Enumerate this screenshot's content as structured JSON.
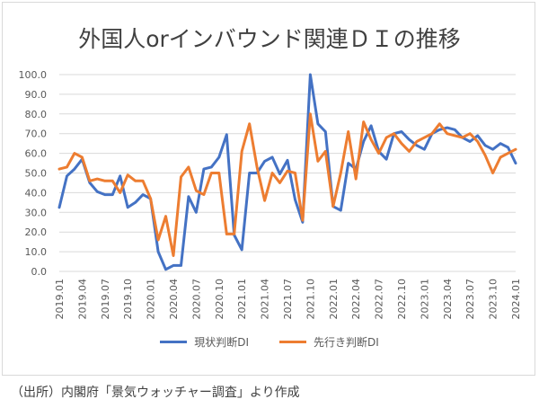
{
  "chart_data": {
    "type": "line",
    "title": "外国人orインバウンド関連ＤＩの推移",
    "ylim": [
      0,
      100
    ],
    "yticks": [
      "0.0",
      "10.0",
      "20.0",
      "30.0",
      "40.0",
      "50.0",
      "60.0",
      "70.0",
      "80.0",
      "90.0",
      "100.0"
    ],
    "x": [
      "2019.01",
      "2019.02",
      "2019.03",
      "2019.04",
      "2019.05",
      "2019.06",
      "2019.07",
      "2019.08",
      "2019.09",
      "2019.10",
      "2019.11",
      "2019.12",
      "2020.01",
      "2020.02",
      "2020.03",
      "2020.04",
      "2020.05",
      "2020.06",
      "2020.07",
      "2020.08",
      "2020.09",
      "2020.10",
      "2020.11",
      "2020.12",
      "2021.01",
      "2021.02",
      "2021.03",
      "2021.04",
      "2021.05",
      "2021.06",
      "2021.07",
      "2021.08",
      "2021.09",
      "2021.10",
      "2021.11",
      "2021.12",
      "2022.01",
      "2022.02",
      "2022.03",
      "2022.04",
      "2022.05",
      "2022.06",
      "2022.07",
      "2022.08",
      "2022.09",
      "2022.10",
      "2022.11",
      "2022.12",
      "2023.01",
      "2023.02",
      "2023.03",
      "2023.04",
      "2023.05",
      "2023.06",
      "2023.07",
      "2023.08",
      "2023.09",
      "2023.10",
      "2023.11",
      "2023.12",
      "2024.01"
    ],
    "xtick_labels": [
      "2019.01",
      "2019.04",
      "2019.07",
      "2019.10",
      "2020.01",
      "2020.04",
      "2020.07",
      "2020.10",
      "2021.01",
      "2021.04",
      "2021.07",
      "2021.10",
      "2022.01",
      "2022.04",
      "2022.07",
      "2022.10",
      "2023.01",
      "2023.04",
      "2023.07",
      "2023.10",
      "2024.01"
    ],
    "series": [
      {
        "name": "現状判断DI",
        "color": "#4472c4",
        "values": [
          32.5,
          48.5,
          52,
          57,
          45,
          40.5,
          39,
          39,
          48.5,
          32.5,
          35,
          39,
          37,
          10,
          1,
          3,
          3,
          38,
          30,
          52,
          53,
          58,
          69.5,
          18.5,
          11,
          50,
          50,
          56,
          58,
          49.5,
          56.5,
          36.5,
          25,
          100,
          75,
          71,
          33,
          31,
          55,
          52,
          66,
          74,
          61,
          57,
          70,
          71,
          67,
          64,
          62,
          70,
          72,
          73,
          72,
          68,
          66,
          69,
          64,
          62,
          65,
          63,
          55
        ]
      },
      {
        "name": "先行き判断DI",
        "color": "#ed7d31",
        "values": [
          52,
          53,
          60,
          58,
          46,
          47,
          46,
          46,
          40,
          49,
          46,
          46,
          37,
          16,
          28,
          8,
          48,
          53,
          41,
          39,
          50,
          50,
          19,
          19,
          61,
          75,
          53,
          36,
          50,
          45,
          51,
          50,
          26,
          80,
          56,
          61,
          33,
          50,
          71,
          47,
          76,
          67,
          60,
          68,
          70,
          65,
          61,
          66,
          68,
          70,
          75,
          70,
          69,
          68,
          70,
          66,
          59,
          50,
          58,
          60,
          62
        ]
      }
    ]
  },
  "legend": {
    "series1_label": "現状判断DI",
    "series2_label": "先行き判断DI"
  },
  "source": "（出所）内閣府「景気ウォッチャー調査」より作成"
}
